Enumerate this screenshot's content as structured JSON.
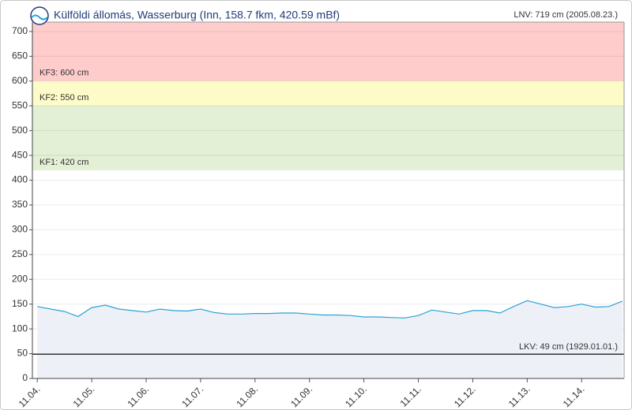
{
  "chart_data": {
    "type": "line",
    "title": "Külföldi állomás, Wasserburg (Inn, 158.7 fkm, 420.59 mBf)",
    "color": "#2aa3d6",
    "area_color": "#eef0f7",
    "grid": true,
    "ylim": [
      0,
      719
    ],
    "yticks": [
      0,
      50,
      100,
      150,
      200,
      250,
      300,
      350,
      400,
      450,
      500,
      550,
      600,
      650,
      700
    ],
    "xlim": [
      -0.09,
      10.78
    ],
    "xticks": [
      {
        "value": 0,
        "label": "11.04."
      },
      {
        "value": 1,
        "label": "11.05."
      },
      {
        "value": 2,
        "label": "11.06."
      },
      {
        "value": 3,
        "label": "11.07."
      },
      {
        "value": 4,
        "label": "11.08."
      },
      {
        "value": 5,
        "label": "11.09."
      },
      {
        "value": 6,
        "label": "11.10."
      },
      {
        "value": 7,
        "label": "11.11."
      },
      {
        "value": 8,
        "label": "11.12."
      },
      {
        "value": 9,
        "label": "11.13."
      },
      {
        "value": 10,
        "label": "11.14."
      }
    ],
    "x": [
      0,
      0.25,
      0.5,
      0.75,
      1,
      1.25,
      1.5,
      1.75,
      2,
      2.25,
      2.5,
      2.75,
      3,
      3.25,
      3.5,
      3.75,
      4,
      4.25,
      4.5,
      4.75,
      5,
      5.25,
      5.5,
      5.75,
      6,
      6.25,
      6.5,
      6.75,
      7,
      7.25,
      7.5,
      7.75,
      8,
      8.25,
      8.5,
      8.75,
      9,
      9.25,
      9.5,
      9.75,
      10,
      10.25,
      10.5,
      10.75
    ],
    "values": [
      145,
      140,
      135,
      125,
      143,
      148,
      140,
      137,
      134,
      140,
      137,
      136,
      140,
      133,
      130,
      130,
      131,
      131,
      132,
      132,
      130,
      128,
      128,
      127,
      124,
      124,
      123,
      122,
      127,
      138,
      134,
      130,
      137,
      137,
      132,
      145,
      157,
      150,
      143,
      145,
      150,
      144,
      145,
      156
    ],
    "bands": [
      {
        "label": "KF3: 600 cm",
        "from": 600,
        "to": 719,
        "color": "#ffcccc"
      },
      {
        "label": "KF2: 550 cm",
        "from": 550,
        "to": 600,
        "color": "#fdfbc8"
      },
      {
        "label": "KF1: 420 cm",
        "from": 420,
        "to": 550,
        "color": "#e3f0d5"
      }
    ],
    "lnv": {
      "label": "LNV: 719 cm (2005.08.23.)",
      "value": 719
    },
    "lkv": {
      "label": "LKV: 49 cm (1929.01.01.)",
      "value": 49
    }
  }
}
